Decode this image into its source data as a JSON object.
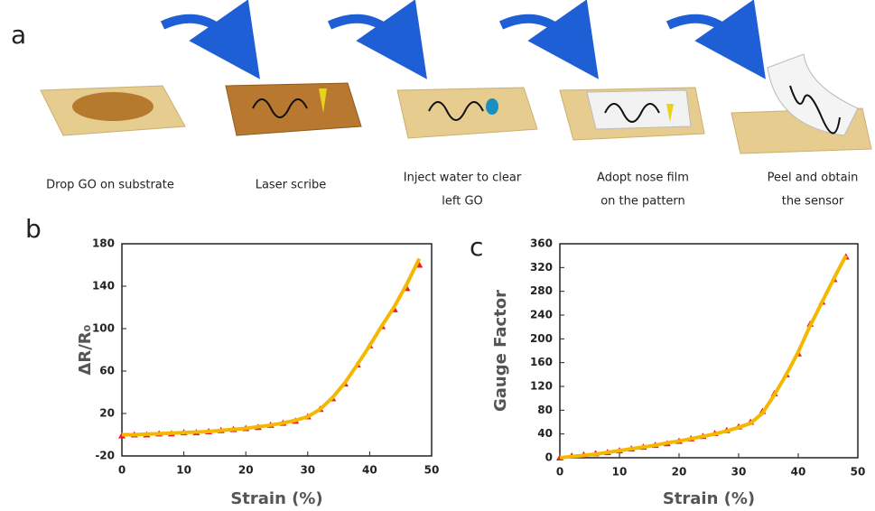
{
  "panel_a": {
    "label": "a",
    "steps": [
      [
        "Drop GO on substrate"
      ],
      [
        "Laser scribe"
      ],
      [
        "Inject water to clear",
        "left GO"
      ],
      [
        "Adopt nose film",
        "on the pattern"
      ],
      [
        "Peel and obtain",
        "the sensor"
      ]
    ]
  },
  "chart_data": [
    {
      "type": "scatter-fit",
      "panel_label": "b",
      "x_label": "Strain (%)",
      "y_label": "ΔR/R₀",
      "x": [
        0,
        2,
        4,
        6,
        8,
        10,
        12,
        14,
        16,
        18,
        20,
        22,
        24,
        26,
        28,
        30,
        32,
        34,
        36,
        38,
        40,
        42,
        44,
        46,
        48
      ],
      "series": [
        {
          "color": "#e8201c",
          "marker": "triangle",
          "values": [
            -1,
            0,
            0,
            1,
            1,
            2,
            2,
            3,
            4,
            5,
            6,
            7,
            9,
            11,
            13,
            17,
            24,
            34,
            48,
            66,
            84,
            102,
            118,
            138,
            160
          ]
        },
        {
          "color": "#f5b800",
          "marker": "line",
          "values": [
            0,
            0,
            0.5,
            1,
            1.5,
            2,
            2.5,
            3,
            4,
            5,
            6,
            7.5,
            9,
            11,
            13.5,
            17,
            24,
            35,
            49,
            66,
            84,
            103,
            121,
            142,
            166
          ]
        }
      ],
      "xlim": [
        0,
        50
      ],
      "xticks": [
        0,
        10,
        20,
        30,
        40,
        50
      ],
      "ylim": [
        -20,
        180
      ],
      "yticks": [
        -20,
        20,
        60,
        100,
        140,
        180
      ]
    },
    {
      "type": "scatter-fit",
      "panel_label": "c",
      "x_label": "Strain (%)",
      "y_label": "Gauge Factor",
      "x": [
        0,
        2,
        4,
        6,
        8,
        10,
        12,
        14,
        16,
        18,
        20,
        22,
        24,
        26,
        28,
        30,
        32,
        34,
        36,
        38,
        40,
        42,
        44,
        46,
        48
      ],
      "series": [
        {
          "color": "#e8201c",
          "marker": "triangle",
          "values": [
            0,
            3,
            5,
            7,
            9,
            12,
            15,
            18,
            21,
            24,
            28,
            32,
            36,
            41,
            46,
            52,
            60,
            78,
            108,
            140,
            175,
            225,
            262,
            300,
            338
          ]
        },
        {
          "color": "#f5b800",
          "marker": "line",
          "values": [
            0,
            2,
            4,
            6,
            9,
            12,
            15,
            18,
            21,
            25,
            28,
            32,
            36,
            40,
            45,
            51,
            58,
            75,
            106,
            140,
            178,
            222,
            262,
            302,
            340
          ]
        }
      ],
      "xlim": [
        0,
        50
      ],
      "xticks": [
        0,
        10,
        20,
        30,
        40,
        50
      ],
      "ylim": [
        0,
        360
      ],
      "yticks": [
        0,
        40,
        80,
        120,
        160,
        200,
        240,
        280,
        320,
        360
      ]
    }
  ]
}
